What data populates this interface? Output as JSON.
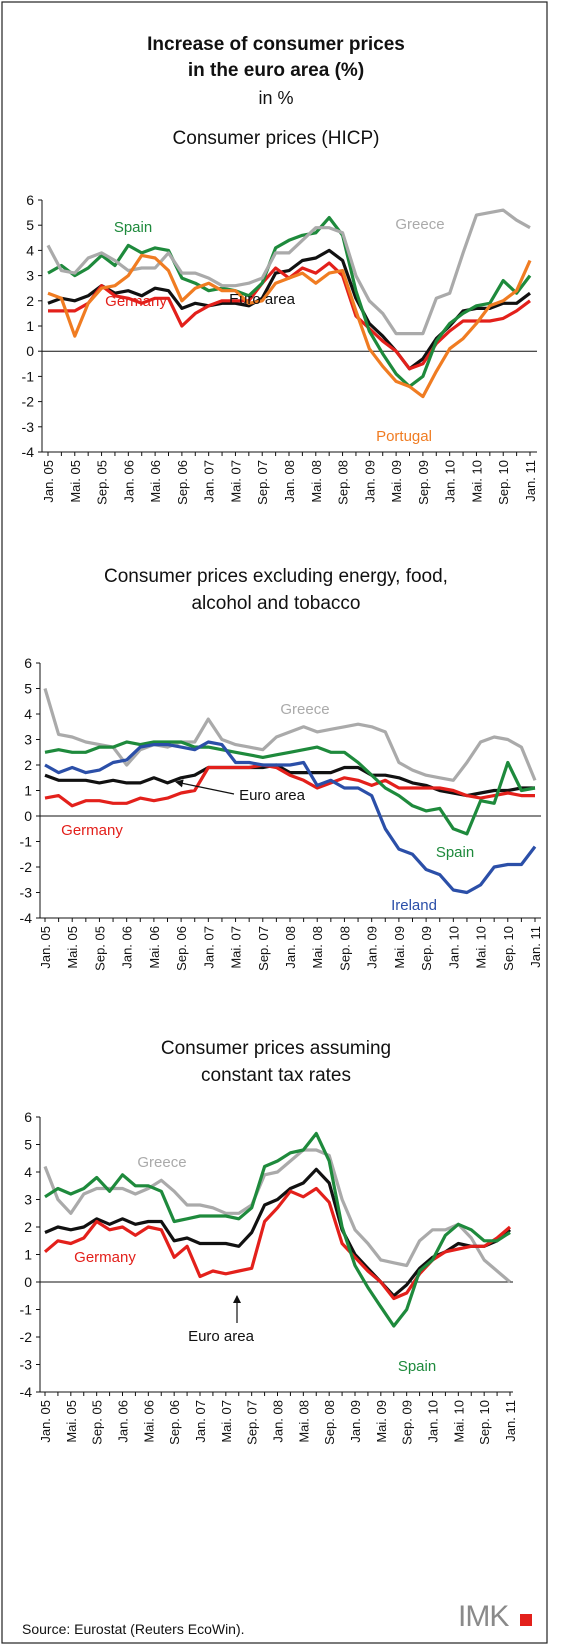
{
  "header": {
    "title_lines": [
      "Increase of consumer prices",
      "in the euro area (%)"
    ],
    "unit": "in %"
  },
  "chart_data": [
    {
      "type": "line",
      "title": [
        "Consumer prices (HICP)"
      ],
      "categories": [
        "Jan. 05",
        null,
        "Mai. 05",
        null,
        "Sep. 05",
        null,
        "Jan. 06",
        null,
        "Mai. 06",
        null,
        "Sep. 06",
        null,
        "Jan. 07",
        null,
        "Mai. 07",
        null,
        "Sep. 07",
        null,
        "Jan. 08",
        null,
        "Mai. 08",
        null,
        "Sep. 08",
        null,
        "Jan. 09",
        null,
        "Mai. 09",
        null,
        "Sep. 09",
        null,
        "Jan. 10",
        null,
        "Mai. 10",
        null,
        "Sep. 10",
        null,
        "Jan. 11"
      ],
      "ylim": [
        -4,
        6
      ],
      "yticks": [
        -4,
        -3,
        -2,
        -1,
        0,
        1,
        2,
        3,
        4,
        5,
        6
      ],
      "series": [
        {
          "name": "Euro area",
          "color": "#111111",
          "values": [
            1.9,
            2.1,
            2.0,
            2.2,
            2.6,
            2.3,
            2.4,
            2.2,
            2.5,
            2.4,
            1.7,
            1.9,
            1.8,
            1.9,
            1.9,
            1.8,
            2.1,
            3.1,
            3.2,
            3.6,
            3.7,
            4.0,
            3.6,
            2.1,
            1.1,
            0.6,
            0.0,
            -0.7,
            -0.3,
            0.5,
            1.0,
            1.6,
            1.7,
            1.7,
            1.9,
            1.9,
            2.3
          ]
        },
        {
          "name": "Germany",
          "color": "#e3201b",
          "values": [
            1.6,
            1.6,
            1.6,
            1.9,
            2.6,
            2.2,
            2.1,
            1.9,
            2.1,
            2.1,
            1.0,
            1.5,
            1.8,
            2.0,
            2.0,
            2.0,
            2.7,
            3.3,
            2.9,
            3.3,
            3.1,
            3.5,
            3.0,
            1.4,
            0.9,
            0.4,
            0.0,
            -0.7,
            -0.5,
            0.3,
            0.8,
            1.2,
            1.2,
            1.2,
            1.3,
            1.6,
            2.0
          ]
        },
        {
          "name": "Spain",
          "color": "#1e8a3c",
          "values": [
            3.1,
            3.4,
            3.0,
            3.3,
            3.8,
            3.4,
            4.2,
            3.9,
            4.1,
            4.0,
            2.9,
            2.7,
            2.4,
            2.5,
            2.4,
            2.2,
            2.7,
            4.1,
            4.4,
            4.6,
            4.7,
            5.3,
            4.6,
            2.4,
            0.8,
            -0.1,
            -0.9,
            -1.4,
            -1.0,
            0.4,
            1.1,
            1.5,
            1.8,
            1.9,
            2.8,
            2.3,
            3.0
          ]
        },
        {
          "name": "Greece",
          "color": "#aaaaaa",
          "values": [
            4.2,
            3.2,
            3.1,
            3.7,
            3.9,
            3.6,
            3.2,
            3.3,
            3.3,
            3.9,
            3.1,
            3.1,
            2.9,
            2.6,
            2.6,
            2.7,
            2.9,
            3.9,
            3.9,
            4.4,
            4.9,
            4.9,
            4.7,
            3.0,
            2.0,
            1.5,
            0.7,
            0.7,
            0.7,
            2.1,
            2.3,
            3.9,
            5.4,
            5.5,
            5.6,
            5.2,
            4.9
          ]
        },
        {
          "name": "Portugal",
          "color": "#f07c22",
          "values": [
            2.3,
            2.1,
            0.6,
            1.9,
            2.5,
            2.6,
            3.0,
            3.8,
            3.7,
            3.2,
            2.0,
            2.5,
            2.7,
            2.4,
            2.4,
            1.9,
            2.0,
            2.7,
            2.9,
            3.1,
            2.7,
            3.1,
            3.2,
            1.6,
            0.1,
            -0.6,
            -1.2,
            -1.4,
            -1.8,
            -0.8,
            0.1,
            0.5,
            1.1,
            1.8,
            2.0,
            2.4,
            3.6
          ]
        }
      ]
    },
    {
      "type": "line",
      "title": [
        "Consumer prices excluding energy, food,",
        "alcohol and tobacco"
      ],
      "categories": [
        "Jan. 05",
        null,
        "Mai. 05",
        null,
        "Sep. 05",
        null,
        "Jan. 06",
        null,
        "Mai. 06",
        null,
        "Sep. 06",
        null,
        "Jan. 07",
        null,
        "Mai. 07",
        null,
        "Sep. 07",
        null,
        "Jan. 08",
        null,
        "Mai. 08",
        null,
        "Sep. 08",
        null,
        "Jan. 09",
        null,
        "Mai. 09",
        null,
        "Sep. 09",
        null,
        "Jan. 10",
        null,
        "Mai. 10",
        null,
        "Sep. 10",
        null,
        "Jan. 11"
      ],
      "ylim": [
        -4,
        6
      ],
      "yticks": [
        -4,
        -3,
        -2,
        -1,
        0,
        1,
        2,
        3,
        4,
        5,
        6
      ],
      "series": [
        {
          "name": "Greece",
          "color": "#aaaaaa",
          "values": [
            5.0,
            3.2,
            3.1,
            2.9,
            2.8,
            2.7,
            2.0,
            2.6,
            2.8,
            2.7,
            2.9,
            2.9,
            3.8,
            3.0,
            2.8,
            2.7,
            2.6,
            3.1,
            3.3,
            3.5,
            3.3,
            3.4,
            3.5,
            3.6,
            3.5,
            3.3,
            2.1,
            1.8,
            1.6,
            1.5,
            1.4,
            2.1,
            2.9,
            3.1,
            3.0,
            2.7,
            1.4
          ]
        },
        {
          "name": "Euro area",
          "color": "#111111",
          "values": [
            1.6,
            1.4,
            1.4,
            1.4,
            1.3,
            1.4,
            1.3,
            1.3,
            1.5,
            1.3,
            1.5,
            1.6,
            1.9,
            1.9,
            1.9,
            1.9,
            1.9,
            2.0,
            1.7,
            1.7,
            1.7,
            1.7,
            1.9,
            1.9,
            1.6,
            1.6,
            1.5,
            1.3,
            1.2,
            1.0,
            0.9,
            0.8,
            0.9,
            1.0,
            1.0,
            1.1,
            1.1
          ]
        },
        {
          "name": "Germany",
          "color": "#e3201b",
          "values": [
            0.7,
            0.8,
            0.4,
            0.6,
            0.6,
            0.5,
            0.5,
            0.7,
            0.6,
            0.7,
            0.9,
            1.0,
            1.9,
            1.9,
            1.9,
            1.9,
            2.0,
            1.9,
            1.6,
            1.4,
            1.1,
            1.3,
            1.5,
            1.4,
            1.2,
            1.4,
            1.1,
            1.1,
            1.1,
            1.1,
            1.0,
            0.8,
            0.7,
            0.8,
            0.9,
            0.8,
            0.8
          ]
        },
        {
          "name": "Spain",
          "color": "#1e8a3c",
          "values": [
            2.5,
            2.6,
            2.5,
            2.5,
            2.7,
            2.7,
            2.9,
            2.8,
            2.9,
            2.9,
            2.9,
            2.7,
            2.7,
            2.6,
            2.5,
            2.4,
            2.3,
            2.4,
            2.5,
            2.6,
            2.7,
            2.5,
            2.5,
            2.1,
            1.6,
            1.1,
            0.8,
            0.4,
            0.2,
            0.3,
            -0.5,
            -0.7,
            0.6,
            0.5,
            2.1,
            1.0,
            1.1
          ]
        },
        {
          "name": "Ireland",
          "color": "#2b4fa8",
          "values": [
            2.0,
            1.7,
            1.9,
            1.7,
            1.8,
            2.1,
            2.2,
            2.7,
            2.8,
            2.8,
            2.7,
            2.6,
            2.9,
            2.8,
            2.1,
            2.1,
            2.0,
            2.0,
            2.0,
            2.1,
            1.2,
            1.4,
            1.1,
            1.1,
            0.8,
            -0.5,
            -1.3,
            -1.5,
            -2.1,
            -2.3,
            -2.9,
            -3.0,
            -2.7,
            -2.0,
            -1.9,
            -1.9,
            -1.2
          ]
        }
      ]
    },
    {
      "type": "line",
      "title": [
        "Consumer prices assuming",
        "constant tax rates"
      ],
      "categories": [
        "Jan. 05",
        null,
        "Mai. 05",
        null,
        "Sep. 05",
        null,
        "Jan. 06",
        null,
        "Mai. 06",
        null,
        "Sep. 06",
        null,
        "Jan. 07",
        null,
        "Mai. 07",
        null,
        "Sep. 07",
        null,
        "Jan. 08",
        null,
        "Mai. 08",
        null,
        "Sep. 08",
        null,
        "Jan. 09",
        null,
        "Mai. 09",
        null,
        "Sep. 09",
        null,
        "Jan. 10",
        null,
        "Mai. 10",
        null,
        "Sep. 10",
        null,
        "Jan. 11"
      ],
      "ylim": [
        -4,
        6
      ],
      "yticks": [
        -4,
        -3,
        -2,
        -1,
        0,
        1,
        2,
        3,
        4,
        5,
        6
      ],
      "series": [
        {
          "name": "Greece",
          "color": "#aaaaaa",
          "values": [
            4.2,
            3.0,
            2.5,
            3.2,
            3.4,
            3.4,
            3.4,
            3.2,
            3.4,
            3.7,
            3.3,
            2.8,
            2.8,
            2.7,
            2.5,
            2.5,
            2.8,
            3.9,
            4.0,
            4.4,
            4.8,
            4.8,
            4.6,
            3.0,
            1.9,
            1.4,
            0.8,
            0.7,
            0.6,
            1.5,
            1.9,
            1.9,
            2.1,
            1.6,
            0.8,
            0.4,
            0.0
          ]
        },
        {
          "name": "Euro area",
          "color": "#111111",
          "values": [
            1.8,
            2.0,
            1.9,
            2.0,
            2.3,
            2.1,
            2.3,
            2.1,
            2.2,
            2.2,
            1.5,
            1.6,
            1.4,
            1.4,
            1.4,
            1.3,
            1.8,
            2.8,
            3.0,
            3.4,
            3.6,
            4.1,
            3.6,
            1.9,
            1.0,
            0.5,
            0.0,
            -0.5,
            -0.1,
            0.5,
            0.9,
            1.1,
            1.4,
            1.3,
            1.3,
            1.5,
            1.9
          ]
        },
        {
          "name": "Germany",
          "color": "#e3201b",
          "values": [
            1.1,
            1.5,
            1.4,
            1.6,
            2.2,
            1.9,
            2.0,
            1.7,
            2.0,
            1.9,
            0.9,
            1.3,
            0.2,
            0.4,
            0.3,
            0.4,
            0.5,
            2.2,
            2.7,
            3.3,
            3.1,
            3.4,
            2.9,
            1.4,
            0.9,
            0.4,
            0.0,
            -0.6,
            -0.4,
            0.3,
            0.8,
            1.1,
            1.2,
            1.3,
            1.3,
            1.6,
            2.0
          ]
        },
        {
          "name": "Spain",
          "color": "#1e8a3c",
          "values": [
            3.1,
            3.4,
            3.2,
            3.4,
            3.8,
            3.3,
            3.9,
            3.5,
            3.5,
            3.3,
            2.2,
            2.3,
            2.4,
            2.4,
            2.4,
            2.3,
            2.7,
            4.2,
            4.4,
            4.7,
            4.8,
            5.4,
            4.4,
            2.0,
            0.6,
            -0.2,
            -0.9,
            -1.6,
            -1.0,
            0.4,
            0.8,
            1.7,
            2.1,
            1.9,
            1.5,
            1.5,
            1.8
          ]
        }
      ]
    }
  ],
  "footer": {
    "source": "Source: Eurostat (Reuters EcoWin).",
    "logo": "IMK"
  }
}
